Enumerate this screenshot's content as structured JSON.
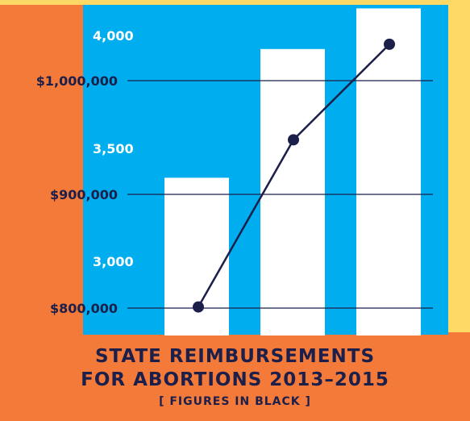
{
  "chart_data": {
    "type": "bar",
    "title_lines": [
      "STATE REIMBURSEMENTS",
      "FOR ABORTIONS 2013–2015"
    ],
    "subtitle": "[ FIGURES IN BLACK ]",
    "categories": [
      "",
      "",
      ""
    ],
    "bar_series": {
      "values": [
        3370,
        3940,
        4120
      ],
      "color": "#ffffff"
    },
    "line_series": {
      "values": [
        801000,
        948000,
        1032000
      ],
      "color": "#1b1f4a"
    },
    "left_axis_bars": {
      "ticks": [
        3000,
        3500,
        4000
      ],
      "tick_labels": [
        "3,000",
        "3,500",
        "4,000"
      ],
      "color": "#ffffff"
    },
    "left_axis_line": {
      "ticks": [
        800000,
        900000,
        1000000
      ],
      "tick_labels": [
        "$800,000",
        "$900,000",
        "$1,000,000"
      ],
      "color": "#1b1f4a"
    },
    "colors": {
      "background": "#f47a3a",
      "plot": "#00aeef",
      "accent": "#ffd966"
    }
  }
}
